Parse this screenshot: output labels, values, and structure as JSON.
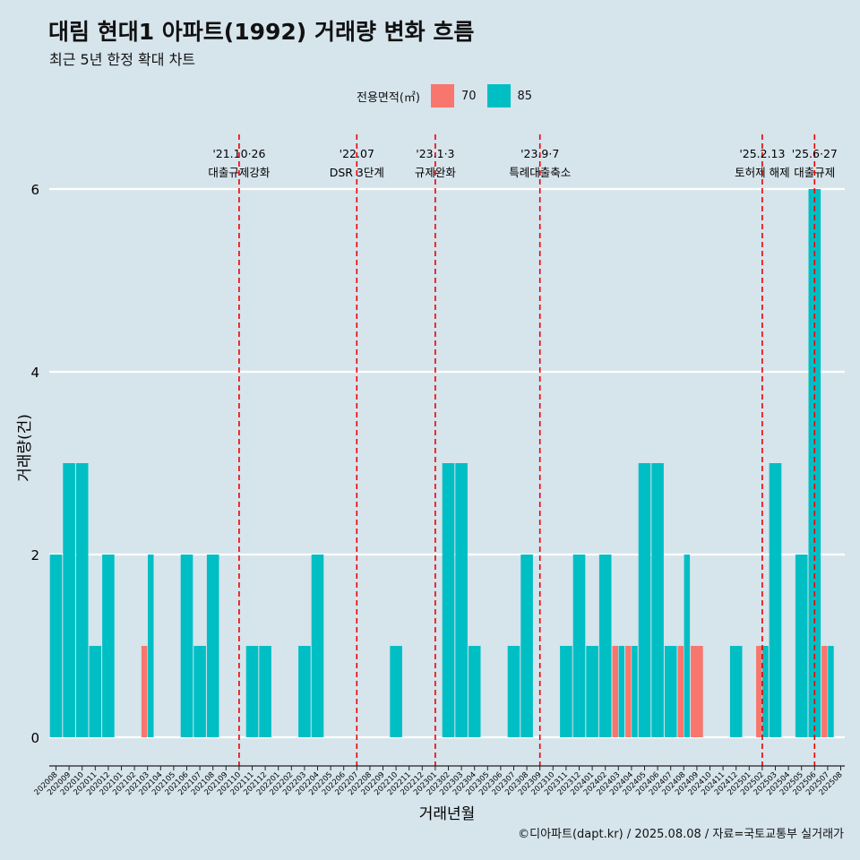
{
  "title": "대림 현대1 아파트(1992) 거래량 변화 흐름",
  "subtitle": "최근 5년 한정 확대 차트",
  "caption": "©디아파트(dapt.kr) / 2025.08.08 / 자료=국토교통부 실거래가",
  "legend": {
    "title": "전용면적(㎡)",
    "items": [
      {
        "label": "70",
        "color": "#f8766d"
      },
      {
        "label": "85",
        "color": "#00bfc4"
      }
    ]
  },
  "chart_data": {
    "type": "bar",
    "stacking": "dodge",
    "xlabel": "거래년월",
    "ylabel": "거래량(건)",
    "ylim": [
      0,
      6
    ],
    "yticks": [
      0,
      2,
      4,
      6
    ],
    "grid": "horizontal",
    "legend_position": "top",
    "categories": [
      "202008",
      "202009",
      "202010",
      "202011",
      "202012",
      "202101",
      "202102",
      "202103",
      "202104",
      "202105",
      "202106",
      "202107",
      "202108",
      "202109",
      "202110",
      "202111",
      "202112",
      "202201",
      "202202",
      "202203",
      "202204",
      "202205",
      "202206",
      "202207",
      "202208",
      "202209",
      "202210",
      "202211",
      "202212",
      "202301",
      "202302",
      "202303",
      "202304",
      "202305",
      "202306",
      "202307",
      "202308",
      "202309",
      "202310",
      "202311",
      "202312",
      "202401",
      "202402",
      "202403",
      "202404",
      "202405",
      "202406",
      "202407",
      "202408",
      "202409",
      "202410",
      "202411",
      "202412",
      "202501",
      "202502",
      "202503",
      "202504",
      "202505",
      "202506",
      "202507",
      "202508"
    ],
    "series": [
      {
        "name": "70",
        "color": "#f8766d",
        "values": [
          0,
          0,
          0,
          0,
          0,
          0,
          0,
          1,
          0,
          0,
          0,
          0,
          0,
          0,
          0,
          0,
          0,
          0,
          0,
          0,
          0,
          0,
          0,
          0,
          0,
          0,
          0,
          0,
          0,
          0,
          0,
          0,
          0,
          0,
          0,
          0,
          0,
          0,
          0,
          0,
          0,
          0,
          0,
          1,
          1,
          0,
          0,
          0,
          1,
          1,
          0,
          0,
          0,
          0,
          1,
          0,
          0,
          0,
          0,
          1,
          0
        ]
      },
      {
        "name": "85",
        "color": "#00bfc4",
        "values": [
          2,
          3,
          3,
          1,
          2,
          0,
          0,
          2,
          0,
          0,
          2,
          1,
          2,
          0,
          0,
          1,
          1,
          0,
          0,
          1,
          2,
          0,
          0,
          0,
          0,
          0,
          1,
          0,
          0,
          0,
          3,
          3,
          1,
          0,
          0,
          1,
          2,
          0,
          0,
          1,
          2,
          1,
          2,
          1,
          1,
          3,
          3,
          1,
          2,
          0,
          0,
          0,
          1,
          0,
          1,
          3,
          0,
          2,
          6,
          1,
          0
        ]
      }
    ],
    "annotations": [
      {
        "date": "'21.10·26",
        "label": "대출규제강화",
        "x": "202110"
      },
      {
        "date": "'22.07",
        "label": "DSR 3단계",
        "x": "202207"
      },
      {
        "date": "'23.1·3",
        "label": "규제완화",
        "x": "202301"
      },
      {
        "date": "'23.9·7",
        "label": "특례대출축소",
        "x": "202309"
      },
      {
        "date": "'25.2.13",
        "label": "토허제 해제",
        "x": "202502"
      },
      {
        "date": "'25.6·27",
        "label": "대출규제",
        "x": "202506"
      }
    ]
  }
}
